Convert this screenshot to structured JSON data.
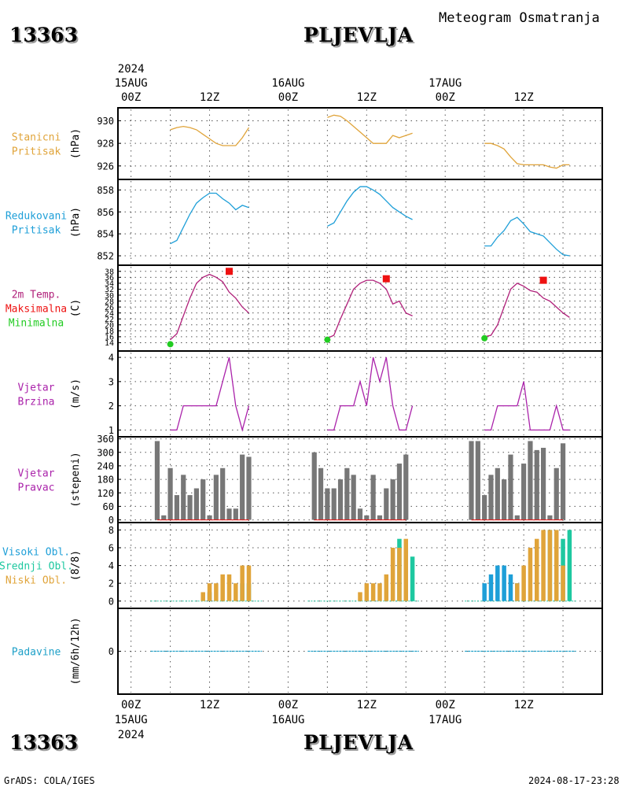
{
  "header": {
    "station_id": "13363",
    "station_name": "PLJEVLJA",
    "title": "Meteogram Osmatranja"
  },
  "footer": {
    "credit": "GrADS: COLA/IGES",
    "timestamp": "2024-08-17-23:28"
  },
  "time_axis": {
    "top_year": "2024",
    "bottom_year": "2024",
    "hour_labels": [
      "00Z",
      "12Z",
      "00Z",
      "12Z",
      "00Z",
      "12Z"
    ],
    "day_labels": [
      "15AUG",
      "16AUG",
      "17AUG"
    ]
  },
  "colors": {
    "station_pressure": "#e0a43a",
    "reduced_pressure": "#1e9fd8",
    "tmax": "#ee1111",
    "tmin": "#22cc22",
    "temperature": "#b0207a",
    "wind": "#aa22aa",
    "bars": "#777777",
    "high_clouds": "#1e9fd8",
    "mid_clouds": "#1ec8a0",
    "low_clouds": "#e0a43a",
    "precip": "#1ea0c8"
  },
  "chart_data": [
    {
      "type": "line",
      "panel": "station_pressure",
      "label_lines": [
        "Stanicni",
        "Pritisak"
      ],
      "ylabel": "(hPa)",
      "ylim": [
        925.5,
        930.8
      ],
      "yticks": [
        926,
        928,
        930
      ],
      "x_unit": "hours since 2024-08-15 00Z",
      "segments": [
        {
          "x": [
            6,
            7,
            8,
            9,
            10,
            11,
            12,
            13,
            14,
            15,
            16,
            17,
            18
          ],
          "y": [
            929.2,
            929.4,
            929.5,
            929.4,
            929.2,
            928.8,
            928.4,
            928.0,
            927.8,
            927.8,
            927.8,
            928.5,
            929.4
          ]
        },
        {
          "x": [
            30,
            31,
            32,
            33,
            34,
            35,
            36,
            37,
            38,
            39,
            40,
            41,
            42,
            43
          ],
          "y": [
            930.3,
            930.5,
            930.4,
            930.0,
            929.5,
            929.0,
            928.5,
            928.0,
            928.0,
            928.0,
            928.7,
            928.5,
            928.7,
            928.9
          ]
        },
        {
          "x": [
            54,
            55,
            56,
            57,
            58,
            59,
            60,
            61,
            62,
            63,
            64,
            65,
            66,
            67
          ],
          "y": [
            928.0,
            928.0,
            927.8,
            927.5,
            926.8,
            926.2,
            926.1,
            926.1,
            926.1,
            926.1,
            925.9,
            925.8,
            926.1,
            926.1
          ]
        }
      ]
    },
    {
      "type": "line",
      "panel": "reduced_pressure",
      "label_lines": [
        "Redukovani",
        "Pritisak"
      ],
      "ylabel": "(hPa)",
      "ylim": [
        851.5,
        858.6
      ],
      "yticks": [
        852,
        854,
        856,
        858
      ],
      "x_unit": "hours since 2024-08-15 00Z",
      "segments": [
        {
          "x": [
            6,
            7,
            8,
            9,
            10,
            11,
            12,
            13,
            14,
            15,
            16,
            17,
            18
          ],
          "y": [
            853.1,
            853.4,
            854.6,
            855.8,
            856.8,
            857.3,
            857.7,
            857.7,
            857.2,
            856.8,
            856.2,
            856.6,
            856.4
          ]
        },
        {
          "x": [
            30,
            31,
            32,
            33,
            34,
            35,
            36,
            37,
            38,
            39,
            40,
            41,
            42,
            43
          ],
          "y": [
            854.7,
            855.0,
            856.0,
            857.0,
            857.8,
            858.3,
            858.3,
            858.0,
            857.6,
            857.0,
            856.4,
            856.0,
            855.6,
            855.3
          ]
        },
        {
          "x": [
            54,
            55,
            56,
            57,
            58,
            59,
            60,
            61,
            62,
            63,
            64,
            65,
            66,
            67
          ],
          "y": [
            852.9,
            852.9,
            853.7,
            854.3,
            855.2,
            855.5,
            854.9,
            854.2,
            854.0,
            853.8,
            853.2,
            852.6,
            852.1,
            852.0
          ]
        }
      ]
    },
    {
      "type": "line",
      "panel": "temperature",
      "label_lines": [
        "2m Temp.",
        "Maksimalna",
        "Minimalna"
      ],
      "ylabel": "(C)",
      "ylim": [
        12,
        39
      ],
      "yticks": [
        14,
        16,
        18,
        20,
        22,
        24,
        26,
        28,
        30,
        32,
        34,
        36,
        38
      ],
      "x_unit": "hours since 2024-08-15 00Z",
      "segments": [
        {
          "x": [
            6,
            7,
            8,
            9,
            10,
            11,
            12,
            13,
            14,
            15,
            16,
            17,
            18
          ],
          "y": [
            15.0,
            17.0,
            23.0,
            29.0,
            34.0,
            36.0,
            37.0,
            36.0,
            34.5,
            31.0,
            29.0,
            26.0,
            24.0
          ]
        },
        {
          "x": [
            30,
            31,
            32,
            33,
            34,
            35,
            36,
            37,
            38,
            39,
            40,
            41,
            42,
            43
          ],
          "y": [
            15.5,
            16.5,
            22.0,
            27.0,
            32.0,
            34.0,
            35.0,
            35.0,
            34.0,
            32.0,
            27.0,
            28.0,
            24.0,
            23.0
          ]
        },
        {
          "x": [
            54,
            55,
            56,
            57,
            58,
            59,
            60,
            61,
            62,
            63,
            64,
            65,
            66,
            67
          ],
          "y": [
            16.0,
            16.5,
            20.0,
            26.0,
            32.0,
            34.0,
            33.0,
            31.5,
            31.0,
            29.0,
            28.0,
            26.0,
            24.0,
            22.5
          ]
        }
      ],
      "tmax_points": {
        "x": [
          15,
          39,
          63
        ],
        "y": [
          38.0,
          35.5,
          35.0
        ]
      },
      "tmin_points": {
        "x": [
          6,
          30,
          54
        ],
        "y": [
          13.5,
          15.0,
          15.5
        ]
      }
    },
    {
      "type": "line",
      "panel": "wind_speed",
      "label_lines": [
        "Vjetar",
        "Brzina"
      ],
      "ylabel": "(m/s)",
      "ylim": [
        0.85,
        4.1
      ],
      "yticks": [
        1,
        2,
        3,
        4
      ],
      "x_unit": "hours since 2024-08-15 00Z",
      "segments": [
        {
          "x": [
            6,
            7,
            8,
            9,
            10,
            11,
            12,
            13,
            14,
            15,
            16,
            17,
            18
          ],
          "y": [
            1,
            1,
            2,
            2,
            2,
            2,
            2,
            2,
            3,
            4,
            2,
            1,
            2
          ]
        },
        {
          "x": [
            30,
            31,
            32,
            33,
            34,
            35,
            36,
            37,
            38,
            39,
            40,
            41,
            42,
            43
          ],
          "y": [
            1,
            1,
            2,
            2,
            2,
            3,
            2,
            4,
            3,
            4,
            2,
            1,
            1,
            2
          ]
        },
        {
          "x": [
            54,
            55,
            56,
            57,
            58,
            59,
            60,
            61,
            62,
            63,
            64,
            65,
            66,
            67
          ],
          "y": [
            1,
            1,
            2,
            2,
            2,
            2,
            3,
            1,
            1,
            1,
            1,
            2,
            1,
            1
          ]
        }
      ]
    },
    {
      "type": "bar",
      "panel": "wind_direction",
      "label_lines": [
        "Vjetar",
        "Pravac"
      ],
      "ylabel": "(stepeni)",
      "ylim": [
        -5,
        362
      ],
      "yticks": [
        0,
        60,
        120,
        180,
        240,
        300,
        360
      ],
      "x_unit": "hours since 2024-08-15 00Z",
      "x": [
        4,
        5,
        6,
        7,
        8,
        9,
        10,
        11,
        12,
        13,
        14,
        15,
        16,
        17,
        18,
        28,
        29,
        30,
        31,
        32,
        33,
        34,
        35,
        36,
        37,
        38,
        39,
        40,
        41,
        42,
        52,
        53,
        54,
        55,
        56,
        57,
        58,
        59,
        60,
        61,
        62,
        63,
        64,
        65,
        66
      ],
      "values": [
        350,
        20,
        230,
        110,
        200,
        110,
        140,
        180,
        20,
        200,
        230,
        50,
        50,
        290,
        280,
        300,
        230,
        140,
        140,
        180,
        230,
        200,
        50,
        20,
        200,
        20,
        140,
        180,
        250,
        290,
        350,
        350,
        110,
        200,
        230,
        180,
        290,
        20,
        250,
        350,
        310,
        320,
        20,
        230,
        340
      ]
    },
    {
      "type": "bar",
      "panel": "clouds",
      "label_lines": [
        "Visoki Obl.",
        "Srednji Obl.",
        "Niski Obl."
      ],
      "ylabel": "(8/8)",
      "ylim": [
        -0.2,
        8.3
      ],
      "yticks": [
        0,
        2,
        4,
        6,
        8
      ],
      "x_unit": "hours since 2024-08-15 00Z",
      "series": [
        {
          "name": "Visoki Obl.",
          "x": [
            12,
            17,
            54,
            55,
            56,
            57,
            58,
            59
          ],
          "values": [
            1,
            2,
            2,
            3,
            4,
            4,
            3,
            2
          ]
        },
        {
          "name": "Srednji Obl.",
          "x": [
            17,
            18,
            41,
            42,
            43,
            64,
            65,
            66,
            67
          ],
          "values": [
            2,
            2,
            7,
            6,
            5,
            8,
            7,
            7,
            8
          ]
        },
        {
          "name": "Niski Obl.",
          "x": [
            11,
            12,
            13,
            14,
            15,
            16,
            17,
            18,
            35,
            36,
            37,
            38,
            39,
            40,
            41,
            42,
            59,
            60,
            61,
            62,
            63,
            64,
            65,
            66
          ],
          "values": [
            1,
            2,
            2,
            3,
            3,
            2,
            4,
            4,
            1,
            2,
            2,
            2,
            3,
            6,
            6,
            7,
            2,
            4,
            6,
            7,
            8,
            8,
            8,
            4
          ]
        }
      ]
    },
    {
      "type": "line",
      "panel": "precipitation",
      "label_lines": [
        "Padavine"
      ],
      "ylabel": "(mm/6h/12h)",
      "ylim": [
        -5,
        5
      ],
      "yticks": [
        0
      ],
      "x_unit": "hours since 2024-08-15 00Z",
      "segments": [
        {
          "x": [
            3,
            20
          ],
          "y": [
            0,
            0
          ]
        },
        {
          "x": [
            27,
            44
          ],
          "y": [
            0,
            0
          ]
        },
        {
          "x": [
            51,
            68
          ],
          "y": [
            0,
            0
          ]
        }
      ]
    }
  ]
}
